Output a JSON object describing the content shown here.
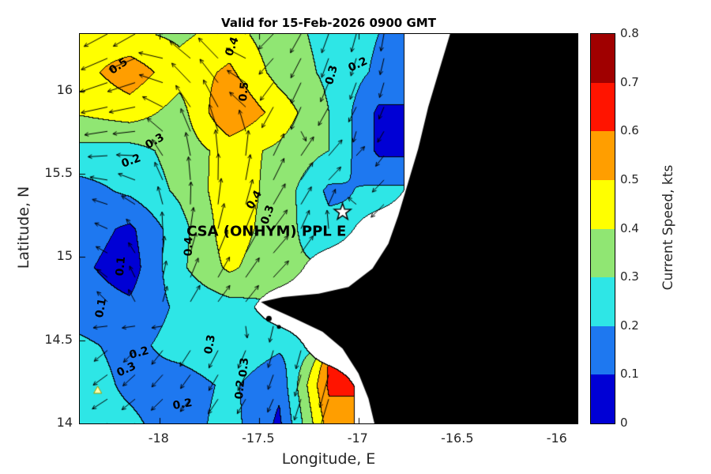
{
  "chart_data": {
    "type": "heatmap",
    "title": "Valid for 15-Feb-2026 0900 GMT",
    "xlabel": "Longitude, E",
    "ylabel": "Latitude, N",
    "xlim": [
      -18.4,
      -15.9
    ],
    "ylim": [
      14.0,
      16.34
    ],
    "xticks": [
      -18,
      -17.5,
      -17,
      -16.5,
      -16
    ],
    "xtick_labels": [
      "-18",
      "-17.5",
      "-17",
      "-16.5",
      "-16"
    ],
    "yticks": [
      14,
      14.5,
      15,
      15.5,
      16
    ],
    "ytick_labels": [
      "14",
      "14.5",
      "15",
      "15.5",
      "16"
    ],
    "colorbar": {
      "label": "Current Speed, kts",
      "ticks": [
        0,
        0.1,
        0.2,
        0.3,
        0.4,
        0.5,
        0.6,
        0.7,
        0.8
      ],
      "tick_labels": [
        "0",
        "0.1",
        "0.2",
        "0.3",
        "0.4",
        "0.5",
        "0.6",
        "0.7",
        "0.8"
      ],
      "colors": [
        "#0000D5",
        "#1E78F0",
        "#2EE6E6",
        "#90E673",
        "#FFFF00",
        "#FF9E00",
        "#FF1400",
        "#A00000"
      ]
    },
    "grid": {
      "lon": [
        -18.4,
        -18.15,
        -17.9,
        -17.65,
        -17.4,
        -17.15,
        -16.9,
        -16.65,
        -16.4,
        -16.15,
        -15.9
      ],
      "lat": [
        16.34,
        16.11,
        15.87,
        15.64,
        15.4,
        15.17,
        14.94,
        14.7,
        14.47,
        14.23,
        14.0
      ],
      "speed_kts": [
        [
          0.45,
          0.42,
          0.38,
          0.44,
          0.34,
          0.27,
          0.2,
          null,
          null,
          null,
          null
        ],
        [
          0.46,
          0.56,
          0.44,
          0.52,
          0.36,
          0.28,
          0.18,
          null,
          null,
          null,
          null
        ],
        [
          0.41,
          0.45,
          0.36,
          0.6,
          0.46,
          0.3,
          0.08,
          null,
          null,
          null,
          null
        ],
        [
          0.27,
          0.26,
          0.34,
          0.44,
          0.38,
          0.3,
          0.08,
          null,
          null,
          null,
          null
        ],
        [
          0.16,
          0.22,
          0.32,
          0.46,
          0.36,
          0.18,
          0.22,
          null,
          null,
          null,
          null
        ],
        [
          0.15,
          0.08,
          0.26,
          0.46,
          0.34,
          0.23,
          null,
          null,
          null,
          null,
          null
        ],
        [
          0.12,
          0.05,
          0.28,
          0.42,
          0.32,
          null,
          null,
          null,
          null,
          null,
          null
        ],
        [
          0.15,
          0.12,
          0.22,
          0.26,
          null,
          null,
          null,
          null,
          null,
          null,
          null
        ],
        [
          0.22,
          0.17,
          0.24,
          0.28,
          0.22,
          null,
          null,
          null,
          null,
          null,
          null
        ],
        [
          0.25,
          0.18,
          0.15,
          0.22,
          0.12,
          0.62,
          null,
          null,
          null,
          null,
          null
        ],
        [
          0.25,
          0.22,
          0.15,
          0.24,
          0.08,
          0.55,
          null,
          null,
          null,
          null,
          null
        ]
      ],
      "direction_deg": [
        [
          200,
          215,
          150,
          135,
          235,
          250,
          260,
          0,
          0,
          0,
          0
        ],
        [
          195,
          205,
          140,
          130,
          240,
          250,
          255,
          0,
          0,
          0,
          0
        ],
        [
          185,
          195,
          125,
          115,
          250,
          240,
          245,
          0,
          0,
          0,
          0
        ],
        [
          180,
          190,
          105,
          95,
          60,
          50,
          235,
          0,
          0,
          0,
          0
        ],
        [
          170,
          160,
          95,
          85,
          60,
          45,
          225,
          0,
          0,
          0,
          0
        ],
        [
          160,
          150,
          85,
          75,
          50,
          95,
          0,
          0,
          0,
          0,
          0
        ],
        [
          150,
          140,
          75,
          60,
          45,
          0,
          0,
          0,
          0,
          0,
          0
        ],
        [
          140,
          130,
          60,
          50,
          0,
          0,
          0,
          0,
          0,
          0,
          0
        ],
        [
          215,
          225,
          235,
          245,
          255,
          0,
          0,
          0,
          0,
          0,
          0
        ],
        [
          210,
          220,
          230,
          240,
          250,
          255,
          0,
          0,
          0,
          0,
          0
        ],
        [
          205,
          215,
          225,
          235,
          245,
          250,
          0,
          0,
          0,
          0,
          0
        ]
      ]
    },
    "land_polygon_lonlat": [
      [
        -16.54,
        16.34
      ],
      [
        -15.9,
        16.34
      ],
      [
        -15.9,
        14.0
      ],
      [
        -16.92,
        14.0
      ],
      [
        -16.95,
        14.15
      ],
      [
        -17.0,
        14.3
      ],
      [
        -17.08,
        14.45
      ],
      [
        -17.18,
        14.55
      ],
      [
        -17.32,
        14.63
      ],
      [
        -17.45,
        14.7
      ],
      [
        -17.49,
        14.73
      ],
      [
        -17.38,
        14.76
      ],
      [
        -17.2,
        14.78
      ],
      [
        -17.05,
        14.82
      ],
      [
        -16.93,
        14.93
      ],
      [
        -16.85,
        15.08
      ],
      [
        -16.8,
        15.25
      ],
      [
        -16.75,
        15.45
      ],
      [
        -16.7,
        15.65
      ],
      [
        -16.65,
        15.9
      ],
      [
        -16.6,
        16.1
      ],
      [
        -16.54,
        16.34
      ]
    ],
    "islands_lonlat": [
      [
        -17.45,
        14.63
      ],
      [
        -17.4,
        14.58
      ]
    ],
    "contour_labels": [
      {
        "text": "0.5",
        "lon": -18.2,
        "lat": 16.14,
        "rot": -35
      },
      {
        "text": "0.4",
        "lon": -17.63,
        "lat": 16.26,
        "rot": -70
      },
      {
        "text": "0.3",
        "lon": -17.13,
        "lat": 16.09,
        "rot": -75
      },
      {
        "text": "0.2",
        "lon": -17.0,
        "lat": 16.15,
        "rot": -25
      },
      {
        "text": "0.5",
        "lon": -17.57,
        "lat": 15.99,
        "rot": -85
      },
      {
        "text": "0.3",
        "lon": -18.02,
        "lat": 15.69,
        "rot": -30
      },
      {
        "text": "0.2",
        "lon": -18.14,
        "lat": 15.57,
        "rot": -20
      },
      {
        "text": "0.4",
        "lon": -17.52,
        "lat": 15.34,
        "rot": -60
      },
      {
        "text": "0.3",
        "lon": -17.45,
        "lat": 15.25,
        "rot": -70
      },
      {
        "text": "0.4",
        "lon": -17.85,
        "lat": 15.06,
        "rot": -88
      },
      {
        "text": "0.1",
        "lon": -18.19,
        "lat": 14.94,
        "rot": -85
      },
      {
        "text": "0.1",
        "lon": -18.29,
        "lat": 14.69,
        "rot": -80
      },
      {
        "text": "0.2",
        "lon": -18.1,
        "lat": 14.42,
        "rot": -15
      },
      {
        "text": "0.3",
        "lon": -18.16,
        "lat": 14.32,
        "rot": -25
      },
      {
        "text": "0.3",
        "lon": -17.74,
        "lat": 14.47,
        "rot": -80
      },
      {
        "text": "0.2",
        "lon": -17.88,
        "lat": 14.11,
        "rot": -10
      },
      {
        "text": "0.3",
        "lon": -17.57,
        "lat": 14.33,
        "rot": -85
      },
      {
        "text": "0.2",
        "lon": -17.59,
        "lat": 14.2,
        "rot": -85
      }
    ],
    "annotation": {
      "text": "CSA (ONHYM) PPL E",
      "lon": -17.86,
      "lat": 15.15
    },
    "star_marker_lonlat": [
      -17.08,
      15.27
    ],
    "triangle_marker_lonlat": [
      -18.31,
      14.2
    ]
  }
}
